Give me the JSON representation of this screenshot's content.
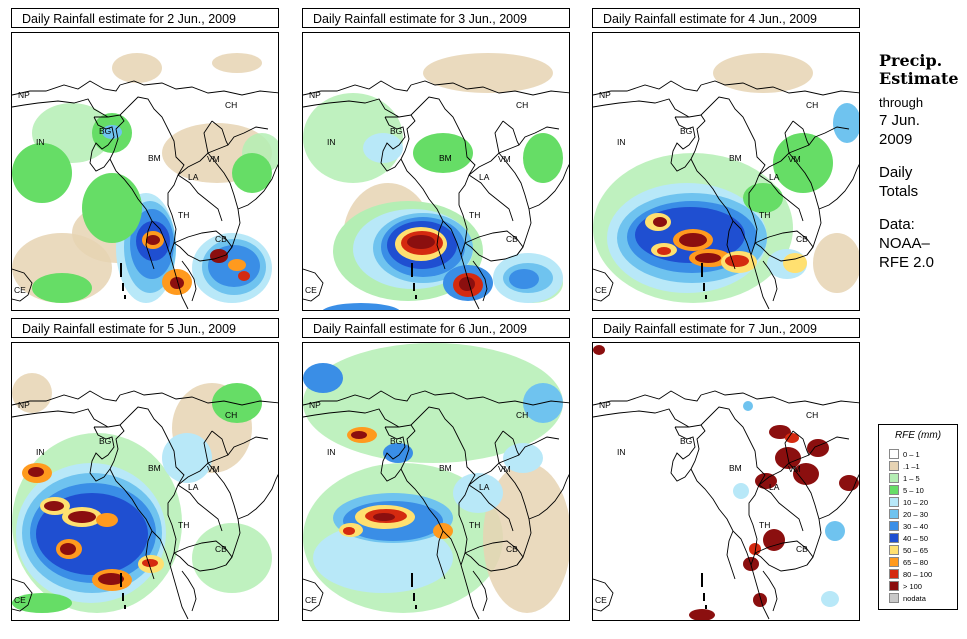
{
  "panels": [
    {
      "title": "Daily Rainfall estimate for  2 Jun., 2009",
      "scene": "d2"
    },
    {
      "title": "Daily Rainfall estimate for  3 Jun., 2009",
      "scene": "d3"
    },
    {
      "title": "Daily Rainfall estimate for  4 Jun., 2009",
      "scene": "d4"
    },
    {
      "title": "Daily Rainfall estimate for  5 Jun., 2009",
      "scene": "d5"
    },
    {
      "title": "Daily Rainfall estimate for  6 Jun., 2009",
      "scene": "d6"
    },
    {
      "title": "Daily Rainfall estimate for  7 Jun., 2009",
      "scene": "d7"
    }
  ],
  "country_labels": [
    "NP",
    "CH",
    "IN",
    "BG",
    "BM",
    "VM",
    "LA",
    "TH",
    "CB",
    "CE"
  ],
  "side": {
    "heading_line1": "Precip.",
    "heading_line2": "Estimate",
    "through": "through",
    "date_line1": "7 Jun.",
    "date_line2": "2009",
    "totals_line1": "Daily",
    "totals_line2": "Totals",
    "data_line1": "Data:",
    "data_line2": "NOAA–",
    "data_line3": "RFE 2.0"
  },
  "legend": {
    "title": "RFE (mm)",
    "items": [
      {
        "label": "0 – 1",
        "color": "#ffffff"
      },
      {
        "label": ".1 –1",
        "color": "#e6d3b3"
      },
      {
        "label": "1 – 5",
        "color": "#b4eeb4"
      },
      {
        "label": "5 – 10",
        "color": "#66dd66"
      },
      {
        "label": "10 – 20",
        "color": "#b8e8f8"
      },
      {
        "label": "20 – 30",
        "color": "#6fc3ef"
      },
      {
        "label": "30 – 40",
        "color": "#3a8ee6"
      },
      {
        "label": "40 – 50",
        "color": "#1f4fd1"
      },
      {
        "label": "50 – 65",
        "color": "#ffe070"
      },
      {
        "label": "65 – 80",
        "color": "#ff9a1e"
      },
      {
        "label": "80 – 100",
        "color": "#d42a10"
      },
      {
        "label": "> 100",
        "color": "#8b0f0f"
      },
      {
        "label": "nodata",
        "color": "#c8c8c8"
      }
    ]
  }
}
